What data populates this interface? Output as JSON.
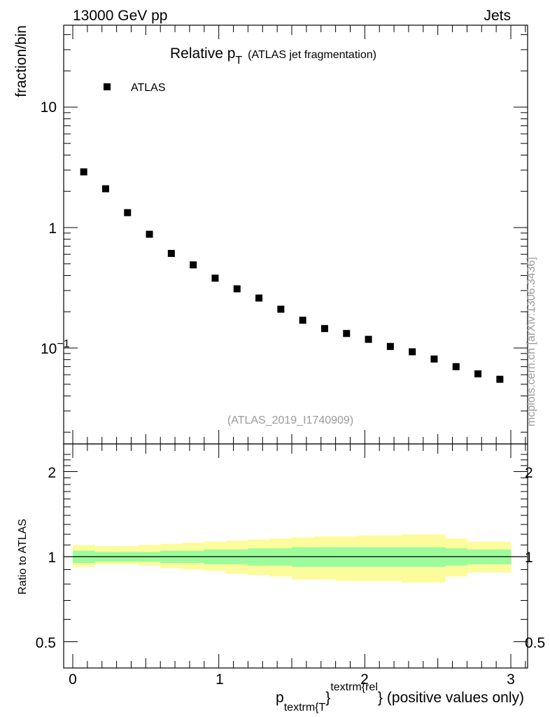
{
  "header": {
    "energy_label": "13000 GeV pp",
    "category_label": "Jets"
  },
  "title": {
    "main": "Relative p",
    "main_sub": "T",
    "suffix": "(ATLAS jet fragmentation)"
  },
  "legend": {
    "label": "ATLAS"
  },
  "side_label": "mcplots.cern.ch [arXiv:1306.3436]",
  "analysis_label": "(ATLAS_2019_I1740909)",
  "y_label_main": "fraction/bin",
  "y_label_ratio": "Ratio to ATLAS",
  "x_label": {
    "p": "p",
    "sub": "textrm{T",
    "brace1": "}",
    "sup": "textrm{rel",
    "brace2": "}",
    "rest": "(positive values only)"
  },
  "main_ticks": {
    "t10": "10",
    "t1": "1",
    "tm1_base": "10",
    "tm1_exp": "−1"
  },
  "ratio_ticks": {
    "t2": "2",
    "t1": "1",
    "t05": "0.5",
    "r2": "2",
    "r1": "1",
    "r05": "0.5"
  },
  "x_ticks": {
    "x0": "0",
    "x1": "1",
    "x2": "2",
    "x3": "3"
  },
  "chart_data": {
    "type": "scatter",
    "title": "Relative pT (ATLAS jet fragmentation)",
    "xlabel": "p_textrm{T}^textrm{rel} (positive values only)",
    "ylabel": "fraction/bin",
    "yscale": "log",
    "xlim": [
      -0.07,
      3.07
    ],
    "ylim": [
      0.02,
      50
    ],
    "series": [
      {
        "name": "ATLAS",
        "x": [
          0.075,
          0.225,
          0.375,
          0.525,
          0.675,
          0.825,
          0.975,
          1.125,
          1.275,
          1.425,
          1.575,
          1.725,
          1.875,
          2.025,
          2.175,
          2.325,
          2.475,
          2.625,
          2.775,
          2.925
        ],
        "values": [
          2.9,
          2.1,
          1.33,
          0.88,
          0.61,
          0.49,
          0.38,
          0.31,
          0.26,
          0.21,
          0.17,
          0.145,
          0.132,
          0.118,
          0.103,
          0.093,
          0.081,
          0.07,
          0.061,
          0.055
        ]
      }
    ],
    "ratio": {
      "ylabel": "Ratio to ATLAS",
      "ylim": [
        0.4,
        2.4
      ],
      "reference": 1.0,
      "bins": [
        0.0,
        0.15,
        0.3,
        0.45,
        0.6,
        0.75,
        0.9,
        1.05,
        1.2,
        1.35,
        1.5,
        1.65,
        1.8,
        1.95,
        2.1,
        2.25,
        2.4,
        2.55,
        2.7,
        2.85,
        3.0
      ],
      "stat_low": [
        0.95,
        0.96,
        0.96,
        0.96,
        0.95,
        0.95,
        0.94,
        0.94,
        0.93,
        0.93,
        0.92,
        0.92,
        0.92,
        0.92,
        0.92,
        0.92,
        0.92,
        0.93,
        0.94,
        0.94
      ],
      "stat_high": [
        1.05,
        1.04,
        1.04,
        1.04,
        1.05,
        1.05,
        1.06,
        1.06,
        1.07,
        1.07,
        1.08,
        1.08,
        1.08,
        1.08,
        1.08,
        1.08,
        1.08,
        1.07,
        1.06,
        1.06
      ],
      "total_low": [
        0.92,
        0.94,
        0.94,
        0.93,
        0.91,
        0.9,
        0.89,
        0.87,
        0.86,
        0.85,
        0.83,
        0.83,
        0.82,
        0.82,
        0.82,
        0.81,
        0.81,
        0.85,
        0.88,
        0.88
      ],
      "total_high": [
        1.1,
        1.09,
        1.09,
        1.1,
        1.11,
        1.12,
        1.13,
        1.14,
        1.15,
        1.16,
        1.17,
        1.18,
        1.18,
        1.19,
        1.19,
        1.2,
        1.2,
        1.16,
        1.13,
        1.13
      ],
      "stat_color": "#9cfc9c",
      "total_color": "#fcfc9c"
    },
    "colors": {
      "marker": "#000000",
      "axis": "#000000"
    }
  }
}
